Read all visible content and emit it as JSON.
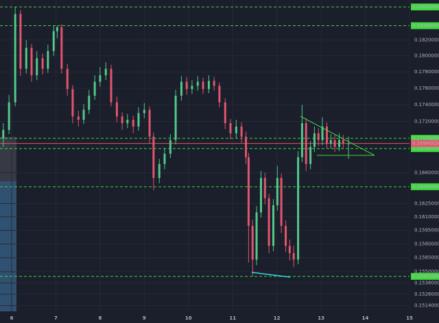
{
  "chart_data": {
    "type": "candlestick",
    "log_scale": true,
    "grid": true,
    "x": [
      5.81,
      5.94,
      6.08,
      6.2,
      6.33,
      6.45,
      6.57,
      6.7,
      6.82,
      6.95,
      7.03,
      7.13,
      7.26,
      7.38,
      7.51,
      7.63,
      7.75,
      7.88,
      8.0,
      8.13,
      8.25,
      8.38,
      8.5,
      8.62,
      8.75,
      8.87,
      9.0,
      9.12,
      9.21,
      9.34,
      9.46,
      9.59,
      9.71,
      9.84,
      9.96,
      10.08,
      10.21,
      10.33,
      10.46,
      10.58,
      10.7,
      10.83,
      10.95,
      11.08,
      11.2,
      11.3,
      11.36,
      11.45,
      11.54,
      11.64,
      11.73,
      11.82,
      11.92,
      12.01,
      12.1,
      12.2,
      12.29,
      12.38,
      12.48,
      12.57,
      12.66,
      12.76,
      12.85,
      12.94,
      13.03,
      13.13,
      13.22,
      13.31,
      13.41,
      13.5,
      13.62
    ],
    "open": [
      0.17,
      0.171,
      0.1743,
      0.1853,
      0.1784,
      0.181,
      0.1776,
      0.1797,
      0.1784,
      0.1806,
      0.1831,
      0.1836,
      0.1784,
      0.1759,
      0.1726,
      0.1722,
      0.1734,
      0.1751,
      0.1768,
      0.1776,
      0.1784,
      0.1743,
      0.1726,
      0.1718,
      0.1722,
      0.1714,
      0.173,
      0.1734,
      0.1702,
      0.1654,
      0.167,
      0.1682,
      0.1698,
      0.1751,
      0.1768,
      0.1759,
      0.1763,
      0.1768,
      0.1759,
      0.1769,
      0.1763,
      0.1743,
      0.1718,
      0.1706,
      0.1714,
      0.1702,
      0.1678,
      0.16,
      0.1563,
      0.1615,
      0.1654,
      0.1631,
      0.1578,
      0.1623,
      0.1654,
      0.16,
      0.1578,
      0.157,
      0.1563,
      0.1678,
      0.1718,
      0.167,
      0.169,
      0.1706,
      0.1698,
      0.1714,
      0.1694,
      0.1698,
      0.169,
      0.1698,
      0.1694
    ],
    "high": [
      0.1718,
      0.1752,
      0.1862,
      0.1858,
      0.182,
      0.1815,
      0.1806,
      0.1803,
      0.1814,
      0.1838,
      0.1838,
      0.184,
      0.179,
      0.1764,
      0.1733,
      0.1741,
      0.1758,
      0.1776,
      0.1786,
      0.1792,
      0.1789,
      0.175,
      0.1731,
      0.1729,
      0.1727,
      0.1737,
      0.1742,
      0.1738,
      0.1707,
      0.1676,
      0.1689,
      0.1705,
      0.1758,
      0.1775,
      0.1774,
      0.177,
      0.1775,
      0.1773,
      0.1776,
      0.1774,
      0.1767,
      0.1748,
      0.1723,
      0.1722,
      0.1719,
      0.1708,
      0.1683,
      0.1607,
      0.1622,
      0.1662,
      0.166,
      0.1636,
      0.163,
      0.1668,
      0.1659,
      0.1606,
      0.1585,
      0.1578,
      0.1685,
      0.174,
      0.1724,
      0.1697,
      0.1714,
      0.1712,
      0.1725,
      0.1719,
      0.1705,
      0.1704,
      0.1706,
      0.1704,
      0.1702
    ],
    "low": [
      0.169,
      0.1705,
      0.1738,
      0.1775,
      0.1778,
      0.1768,
      0.177,
      0.1777,
      0.1779,
      0.18,
      0.1822,
      0.1778,
      0.1751,
      0.1718,
      0.1714,
      0.1717,
      0.1729,
      0.1746,
      0.1762,
      0.177,
      0.1738,
      0.1719,
      0.171,
      0.1712,
      0.1706,
      0.1709,
      0.1724,
      0.1694,
      0.164,
      0.1648,
      0.1664,
      0.1677,
      0.1693,
      0.1745,
      0.1752,
      0.1753,
      0.1757,
      0.1753,
      0.1754,
      0.1757,
      0.1737,
      0.1711,
      0.1699,
      0.17,
      0.1695,
      0.167,
      0.156,
      0.1545,
      0.1557,
      0.1609,
      0.1624,
      0.157,
      0.1572,
      0.1617,
      0.1592,
      0.1571,
      0.1562,
      0.1555,
      0.1558,
      0.1672,
      0.1662,
      0.1664,
      0.1684,
      0.1691,
      0.1692,
      0.1688,
      0.1688,
      0.1684,
      0.1685,
      0.1688,
      0.1676
    ],
    "close": [
      0.171,
      0.1743,
      0.1853,
      0.1784,
      0.181,
      0.1776,
      0.1797,
      0.1784,
      0.1806,
      0.1831,
      0.1836,
      0.1784,
      0.1759,
      0.1726,
      0.1722,
      0.1734,
      0.1751,
      0.1768,
      0.1776,
      0.1784,
      0.1743,
      0.1726,
      0.1718,
      0.1722,
      0.1714,
      0.173,
      0.1734,
      0.1702,
      0.1654,
      0.167,
      0.1682,
      0.1698,
      0.1751,
      0.1768,
      0.1759,
      0.1763,
      0.1768,
      0.1759,
      0.1769,
      0.1763,
      0.1743,
      0.1718,
      0.1706,
      0.1714,
      0.1702,
      0.1678,
      0.16,
      0.1563,
      0.1615,
      0.1654,
      0.1631,
      0.1578,
      0.1623,
      0.1654,
      0.16,
      0.1578,
      0.157,
      0.1563,
      0.1678,
      0.1718,
      0.167,
      0.169,
      0.1706,
      0.1698,
      0.1714,
      0.1694,
      0.1698,
      0.169,
      0.1698,
      0.1694,
      0.1694
    ],
    "colors": {
      "up": "#53c98a",
      "down": "#e2566d",
      "level": "#3fd83f",
      "current": "#e2566d"
    },
    "xlim": [
      5.736,
      15.0
    ],
    "xticks": [
      6,
      7,
      8,
      9,
      10,
      11,
      12,
      13,
      14,
      15
    ],
    "ylim": [
      0.1508,
      0.1871
    ],
    "yticks": [
      {
        "value": 0.182,
        "label": "0.18200000"
      },
      {
        "value": 0.18,
        "label": "0.18000000"
      },
      {
        "value": 0.178,
        "label": "0.17800000"
      },
      {
        "value": 0.176,
        "label": "0.17600000"
      },
      {
        "value": 0.174,
        "label": "0.17400000"
      },
      {
        "value": 0.172,
        "label": "0.17200000"
      },
      {
        "value": 0.166,
        "label": "0.16600000"
      },
      {
        "value": 0.1625,
        "label": "0.16250000"
      },
      {
        "value": 0.161,
        "label": "0.16100000"
      },
      {
        "value": 0.1595,
        "label": "0.15950000"
      },
      {
        "value": 0.158,
        "label": "0.15800000"
      },
      {
        "value": 0.1565,
        "label": "0.15650000"
      },
      {
        "value": 0.155,
        "label": "0.15500000"
      },
      {
        "value": 0.1538,
        "label": "0.15380000"
      },
      {
        "value": 0.1526,
        "label": "0.15260000"
      },
      {
        "value": 0.1514,
        "label": "0.15140000"
      }
    ],
    "levels": [
      {
        "value": 0.1862,
        "label": "0.18620000"
      },
      {
        "value": 0.1838,
        "label": "0.18380000"
      },
      {
        "value": 0.17,
        "label": "0.17000000"
      },
      {
        "value": 0.1688,
        "label": "0.16880000"
      },
      {
        "value": 0.1644,
        "label": "0.16440000"
      },
      {
        "value": 0.1545,
        "label": "0.15450000"
      }
    ],
    "current_price": {
      "value": 0.16940034,
      "label": "0.16940034"
    }
  }
}
